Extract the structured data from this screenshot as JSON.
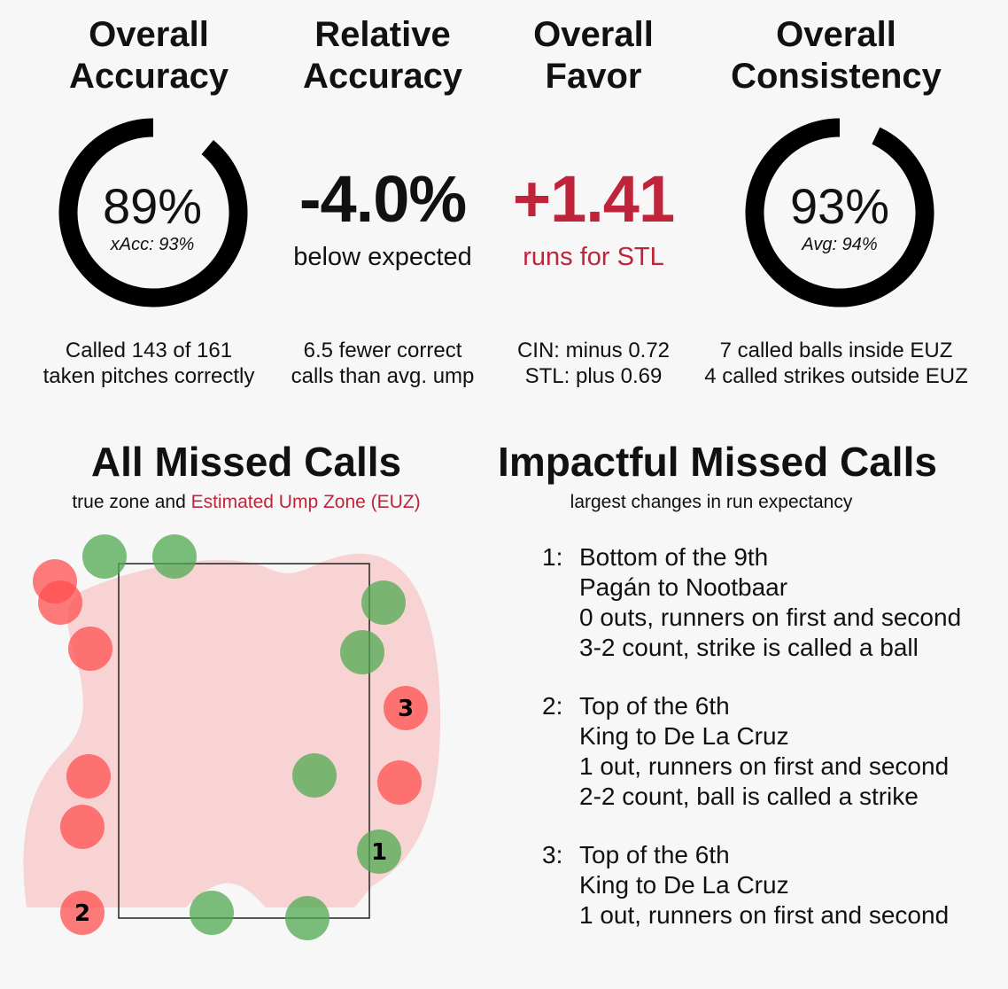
{
  "stats": [
    {
      "title": [
        "Overall",
        "Accuracy"
      ],
      "value": "89%",
      "ring_fraction": 0.89,
      "sub": "xAcc: 93%",
      "foot": [
        "Called 143 of 161",
        "taken pitches correctly"
      ]
    },
    {
      "title": [
        "Relative",
        "Accuracy"
      ],
      "value": "-4.0%",
      "sub": "below expected",
      "foot": [
        "6.5 fewer correct",
        "calls than avg. ump"
      ]
    },
    {
      "title": [
        "Overall",
        "Favor"
      ],
      "value": "+1.41",
      "sub": "runs for STL",
      "foot": [
        "CIN: minus 0.72",
        "STL: plus 0.69"
      ]
    },
    {
      "title": [
        "Overall",
        "Consistency"
      ],
      "value": "93%",
      "ring_fraction": 0.93,
      "sub": "Avg: 94%",
      "foot": [
        "7 called balls inside EUZ",
        "4 called strikes outside EUZ"
      ]
    }
  ],
  "missed": {
    "title": "All Missed Calls",
    "sub_a": "true zone and ",
    "sub_b": "Estimated Ump Zone (EUZ)",
    "labels": {
      "p1": "1",
      "p2": "2",
      "p3": "3"
    }
  },
  "impact": {
    "title": "Impactful Missed Calls",
    "sub": "largest changes in run expectancy",
    "items": [
      {
        "n": "1:",
        "lines": [
          "Bottom of the 9th",
          "Pagán to Nootbaar",
          "0 outs, runners on first and second",
          "3-2 count, strike is called a ball"
        ]
      },
      {
        "n": "2:",
        "lines": [
          "Top of the 6th",
          "King to De La Cruz",
          "1 out, runners on first and second",
          "2-2 count, ball is called a strike"
        ]
      },
      {
        "n": "3:",
        "lines": [
          "Top of the 6th",
          "King to De La Cruz",
          "1 out, runners on first and second",
          ""
        ]
      }
    ]
  },
  "colors": {
    "accent": "#c0243a",
    "euz": "#f8d3d4",
    "ball_miss": "#ff5050",
    "strike_miss": "#50aa50"
  }
}
